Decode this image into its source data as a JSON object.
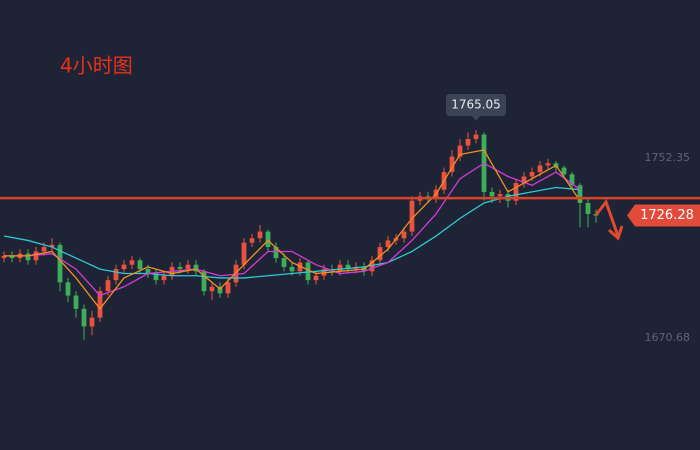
{
  "chart_data": {
    "type": "candlestick",
    "title": "4小时图",
    "open": [
      1707,
      1708,
      1707,
      1709,
      1706,
      1710,
      1712,
      1713,
      1696,
      1690,
      1684,
      1676,
      1680,
      1692,
      1697,
      1702,
      1704,
      1706,
      1702,
      1700,
      1697,
      1699,
      1703,
      1702,
      1704,
      1701,
      1692,
      1694,
      1691,
      1696,
      1704,
      1714,
      1716,
      1719,
      1712,
      1707,
      1703,
      1701,
      1705,
      1697,
      1699,
      1702,
      1701,
      1704,
      1702,
      1703,
      1701,
      1706,
      1712,
      1715,
      1716,
      1719,
      1733,
      1735,
      1734,
      1738,
      1746,
      1753,
      1758,
      1761,
      1763,
      1737,
      1735,
      1736,
      1733,
      1741,
      1744,
      1746,
      1749,
      1750,
      1748,
      1745,
      1740,
      1732,
      1727
    ],
    "high": [
      1710,
      1710,
      1711,
      1711,
      1712,
      1714,
      1716,
      1714,
      1698,
      1692,
      1686,
      1683,
      1694,
      1699,
      1704,
      1706,
      1708,
      1707,
      1704,
      1702,
      1701,
      1705,
      1705,
      1706,
      1706,
      1702,
      1696,
      1696,
      1698,
      1706,
      1716,
      1718,
      1722,
      1720,
      1714,
      1709,
      1705,
      1707,
      1706,
      1701,
      1704,
      1704,
      1706,
      1706,
      1705,
      1705,
      1708,
      1714,
      1717,
      1718,
      1721,
      1735,
      1737,
      1737,
      1740,
      1748,
      1756,
      1761,
      1764,
      1765.05,
      1764,
      1739,
      1738,
      1738,
      1743,
      1746,
      1748,
      1751,
      1752,
      1751,
      1749,
      1746,
      1741,
      1734,
      1729
    ],
    "low": [
      1705,
      1705,
      1705,
      1704,
      1704,
      1708,
      1710,
      1692,
      1687,
      1680,
      1670,
      1672,
      1678,
      1690,
      1695,
      1700,
      1702,
      1700,
      1698,
      1695,
      1695,
      1697,
      1700,
      1700,
      1699,
      1690,
      1688,
      1689,
      1689,
      1694,
      1702,
      1712,
      1714,
      1710,
      1705,
      1701,
      1699,
      1699,
      1695,
      1695,
      1697,
      1699,
      1699,
      1700,
      1700,
      1699,
      1699,
      1704,
      1710,
      1713,
      1714,
      1717,
      1731,
      1732,
      1732,
      1736,
      1744,
      1751,
      1756,
      1759,
      1733,
      1732,
      1732,
      1730,
      1731,
      1739,
      1742,
      1744,
      1747,
      1746,
      1743,
      1738,
      1721,
      1721,
      1723
    ],
    "close": [
      1708,
      1707,
      1709,
      1706,
      1710,
      1712,
      1713,
      1696,
      1690,
      1684,
      1676,
      1680,
      1692,
      1697,
      1702,
      1704,
      1706,
      1702,
      1700,
      1697,
      1699,
      1703,
      1702,
      1704,
      1701,
      1692,
      1694,
      1691,
      1696,
      1704,
      1714,
      1716,
      1719,
      1712,
      1707,
      1703,
      1701,
      1705,
      1697,
      1699,
      1702,
      1701,
      1704,
      1702,
      1703,
      1701,
      1706,
      1712,
      1715,
      1716,
      1719,
      1733,
      1735,
      1734,
      1738,
      1746,
      1753,
      1758,
      1761,
      1763,
      1737,
      1735,
      1736,
      1733,
      1741,
      1744,
      1746,
      1749,
      1750,
      1748,
      1745,
      1740,
      1732,
      1727,
      1726.28
    ],
    "up_color": "#e8533f",
    "down_color": "#3fae5a",
    "ma_x": [
      0,
      3,
      6,
      9,
      12,
      15,
      18,
      21,
      24,
      27,
      30,
      33,
      36,
      39,
      42,
      45,
      48,
      51,
      54,
      57,
      60,
      63,
      66,
      69,
      72
    ],
    "series": [
      {
        "color": "#2ec9d6",
        "values": [
          1717,
          1715,
          1712,
          1707,
          1702,
          1700,
          1700,
          1699,
          1699,
          1698,
          1698,
          1699,
          1700,
          1701,
          1702,
          1703,
          1705,
          1710,
          1717,
          1725,
          1732,
          1735,
          1737,
          1739,
          1738
        ]
      },
      {
        "color": "#d63ad6",
        "values": [
          1708,
          1708,
          1709,
          1702,
          1690,
          1694,
          1700,
          1701,
          1702,
          1699,
          1700,
          1710,
          1710,
          1704,
          1700,
          1701,
          1705,
          1715,
          1727,
          1743,
          1750,
          1744,
          1740,
          1746,
          1738
        ]
      },
      {
        "color": "#f0901e",
        "values": [
          1708,
          1708,
          1710,
          1698,
          1684,
          1698,
          1703,
          1700,
          1702,
          1693,
          1704,
          1715,
          1705,
          1700,
          1701,
          1702,
          1711,
          1725,
          1736,
          1754,
          1756,
          1737,
          1743,
          1749,
          1733
        ]
      }
    ],
    "hline": 1734.2,
    "hline_color": "#d9432b",
    "xlim": [
      -0.5,
      87
    ],
    "ylim": [
      1620,
      1824
    ],
    "yticks": [
      1670.68,
      1752.35
    ]
  }
}
